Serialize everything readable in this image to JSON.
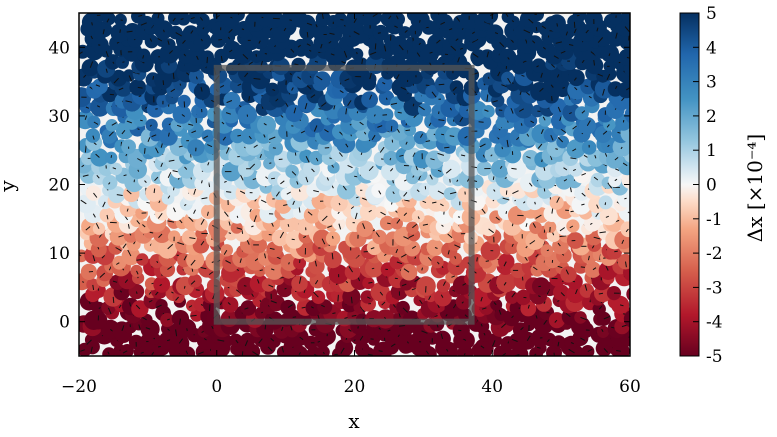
{
  "chart_data": {
    "type": "scatter",
    "title": "",
    "xlabel": "x",
    "ylabel": "y",
    "xlim": [
      -20,
      60
    ],
    "ylim": [
      -5,
      45
    ],
    "x_ticks": [
      -20,
      0,
      20,
      40,
      60
    ],
    "x_tick_labels": [
      "−20",
      "0",
      "20",
      "40",
      "60"
    ],
    "y_ticks": [
      0,
      10,
      20,
      30,
      40
    ],
    "y_tick_labels": [
      "0",
      "10",
      "20",
      "30",
      "40"
    ],
    "grid": false,
    "colorbar": {
      "label": "Δx [×10⁻⁴]",
      "range": [
        -5,
        5
      ],
      "ticks": [
        5,
        4,
        3,
        2,
        1,
        0,
        -1,
        -2,
        -3,
        -4,
        -5
      ],
      "tick_labels": [
        "5",
        "4",
        "3",
        "2",
        "1",
        "0",
        "-1",
        "-2",
        "-3",
        "-4",
        "-5"
      ],
      "colormap": "RdBu"
    },
    "overlay_rectangle": {
      "x": [
        0,
        37
      ],
      "y": [
        0,
        37
      ],
      "color": "#555555"
    },
    "field_description": "Densely packed circular particles colored by displacement Δx; values run from about -4 near y=0 to about +4 near y=45, with short black displacement strokes on each particle."
  }
}
